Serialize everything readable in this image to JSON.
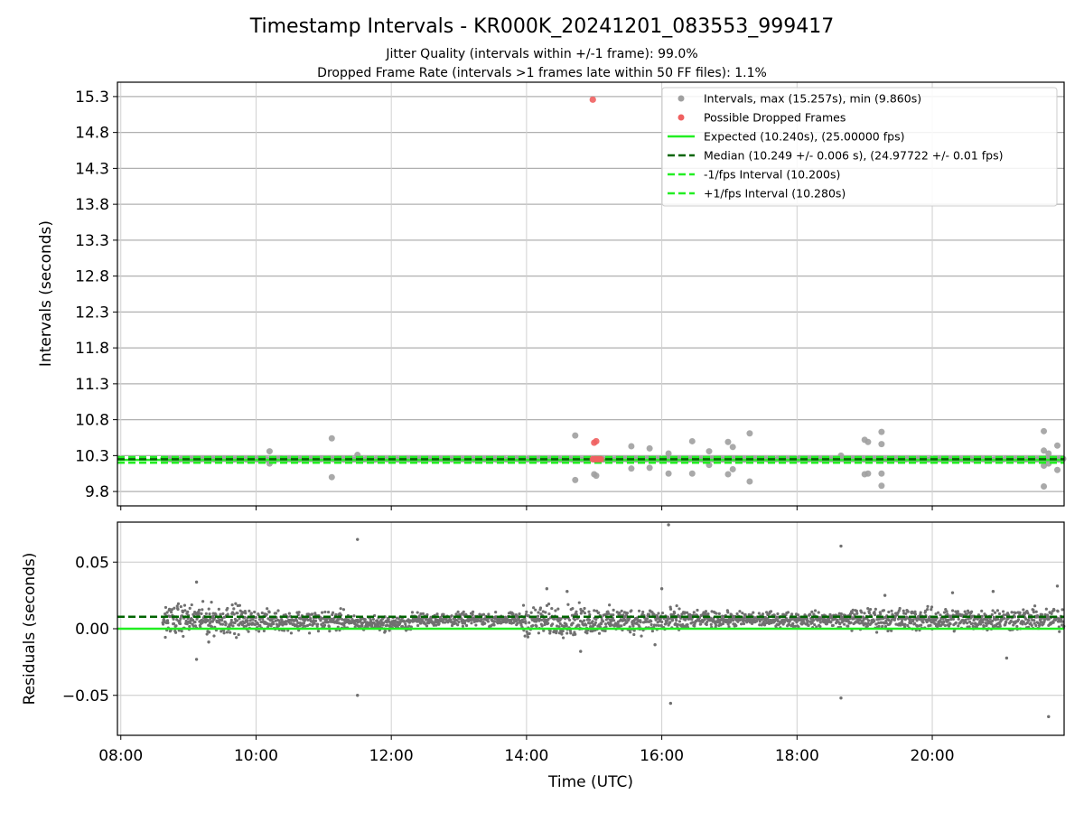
{
  "chart_data": [
    {
      "type": "scatter",
      "title": "Timestamp Intervals - KR000K_20241201_083553_999417",
      "subtitle_lines": [
        "Jitter Quality (intervals within +/-1 frame): 99.0%",
        "Dropped Frame Rate (intervals >1 frames late within 50 FF files): 1.1%"
      ],
      "xlabel": "",
      "ylabel": "Intervals (seconds)",
      "x_unit": "hours (UTC)",
      "xlim": [
        7.95,
        21.95
      ],
      "ylim": [
        9.6,
        15.5
      ],
      "y_tick_labels": [
        "9.8",
        "10.3",
        "10.8",
        "11.3",
        "11.8",
        "12.3",
        "12.8",
        "13.3",
        "13.8",
        "14.3",
        "14.8",
        "15.3"
      ],
      "grid": true,
      "legend_position": "top-right",
      "legend": [
        {
          "label": "Intervals, max (15.257s), min (9.860s)",
          "kind": "marker",
          "color": "#a0a0a0"
        },
        {
          "label": "Possible Dropped Frames",
          "kind": "marker",
          "color": "#f06060"
        },
        {
          "label": "Expected (10.240s), (25.00000 fps)",
          "kind": "line",
          "color": "#22ee22",
          "dash": "solid"
        },
        {
          "label": "Median (10.249 +/- 0.006 s), (24.97722 +/- 0.01 fps)",
          "kind": "line",
          "color": "#006400",
          "dash": "dashed"
        },
        {
          "label": "-1/fps Interval (10.200s)",
          "kind": "line",
          "color": "#22ee22",
          "dash": "dashed"
        },
        {
          "label": "+1/fps Interval (10.280s)",
          "kind": "line",
          "color": "#22ee22",
          "dash": "dashed"
        }
      ],
      "reference_lines": {
        "expected": 10.24,
        "median": 10.249,
        "minus_one_fps": 10.2,
        "plus_one_fps": 10.28
      },
      "series": [
        {
          "name": "Intervals, max (15.257s), min (9.860s)",
          "color": "#a0a0a0",
          "baseline_band": {
            "x_start": 8.62,
            "x_end": 21.95,
            "value": 10.25
          },
          "outliers": [
            [
              10.2,
              10.36
            ],
            [
              10.2,
              10.19
            ],
            [
              11.12,
              10.54
            ],
            [
              11.12,
              10.0
            ],
            [
              11.5,
              10.31
            ],
            [
              14.72,
              10.58
            ],
            [
              14.72,
              9.96
            ],
            [
              15.0,
              10.04
            ],
            [
              15.03,
              10.02
            ],
            [
              15.55,
              10.43
            ],
            [
              15.55,
              10.12
            ],
            [
              15.82,
              10.4
            ],
            [
              15.82,
              10.13
            ],
            [
              16.1,
              10.33
            ],
            [
              16.1,
              10.05
            ],
            [
              16.45,
              10.5
            ],
            [
              16.45,
              10.05
            ],
            [
              16.7,
              10.36
            ],
            [
              16.7,
              10.17
            ],
            [
              16.98,
              10.49
            ],
            [
              16.98,
              10.04
            ],
            [
              17.05,
              10.42
            ],
            [
              17.05,
              10.11
            ],
            [
              17.3,
              10.61
            ],
            [
              17.3,
              9.94
            ],
            [
              18.65,
              10.3
            ],
            [
              19.0,
              10.52
            ],
            [
              19.0,
              10.04
            ],
            [
              19.05,
              10.49
            ],
            [
              19.05,
              10.05
            ],
            [
              19.25,
              10.63
            ],
            [
              19.25,
              10.46
            ],
            [
              19.25,
              10.05
            ],
            [
              19.25,
              9.88
            ],
            [
              21.65,
              10.64
            ],
            [
              21.65,
              10.37
            ],
            [
              21.65,
              10.16
            ],
            [
              21.65,
              9.87
            ],
            [
              21.72,
              10.33
            ],
            [
              21.72,
              10.19
            ],
            [
              21.85,
              10.44
            ],
            [
              21.85,
              10.1
            ]
          ]
        },
        {
          "name": "Possible Dropped Frames",
          "color": "#f06060",
          "points": [
            [
              14.98,
              15.257
            ],
            [
              15.0,
              10.48
            ],
            [
              15.03,
              10.5
            ],
            [
              14.98,
              10.25
            ],
            [
              15.0,
              10.25
            ],
            [
              15.02,
              10.25
            ],
            [
              15.04,
              10.25
            ],
            [
              15.06,
              10.25
            ],
            [
              15.08,
              10.25
            ],
            [
              15.1,
              10.25
            ]
          ]
        }
      ]
    },
    {
      "type": "scatter",
      "title": "",
      "xlabel": "Time (UTC)",
      "ylabel": "Residuals (seconds)",
      "x_unit": "hours (UTC)",
      "xlim": [
        7.95,
        21.95
      ],
      "ylim": [
        -0.08,
        0.08
      ],
      "x_tick_labels": [
        "08:00",
        "10:00",
        "12:00",
        "14:00",
        "16:00",
        "18:00",
        "20:00"
      ],
      "y_tick_labels": [
        "−0.05",
        "0.00",
        "0.05"
      ],
      "grid": true,
      "reference_lines": {
        "zero": 0.0,
        "median_offset": 0.009
      },
      "series": [
        {
          "name": "",
          "color": "#707070",
          "note_bands": [
            {
              "x_start": 8.62,
              "x_end": 9.8,
              "center": 0.007,
              "spread": 0.016
            },
            {
              "x_start": 9.8,
              "x_end": 11.4,
              "center": 0.006,
              "spread": 0.011
            },
            {
              "x_start": 11.4,
              "x_end": 12.3,
              "center": 0.004,
              "spread": 0.008
            },
            {
              "x_start": 12.3,
              "x_end": 13.9,
              "center": 0.007,
              "spread": 0.007
            },
            {
              "x_start": 13.9,
              "x_end": 15.0,
              "center": 0.006,
              "spread": 0.016
            },
            {
              "x_start": 15.0,
              "x_end": 16.4,
              "center": 0.006,
              "spread": 0.014
            },
            {
              "x_start": 16.4,
              "x_end": 18.8,
              "center": 0.007,
              "spread": 0.008
            },
            {
              "x_start": 18.8,
              "x_end": 21.95,
              "center": 0.007,
              "spread": 0.012
            }
          ],
          "outliers": [
            [
              9.12,
              0.035
            ],
            [
              9.12,
              -0.023
            ],
            [
              11.5,
              0.067
            ],
            [
              11.5,
              -0.05
            ],
            [
              16.1,
              0.078
            ],
            [
              16.13,
              -0.056
            ],
            [
              18.65,
              0.062
            ],
            [
              18.65,
              -0.052
            ],
            [
              21.72,
              -0.066
            ],
            [
              21.85,
              0.032
            ],
            [
              14.3,
              0.03
            ],
            [
              14.6,
              0.028
            ],
            [
              16.0,
              0.03
            ],
            [
              19.3,
              0.025
            ],
            [
              20.3,
              0.027
            ],
            [
              20.9,
              0.028
            ],
            [
              21.1,
              -0.022
            ],
            [
              9.3,
              -0.01
            ],
            [
              14.8,
              -0.017
            ],
            [
              15.9,
              -0.012
            ]
          ]
        }
      ]
    }
  ]
}
